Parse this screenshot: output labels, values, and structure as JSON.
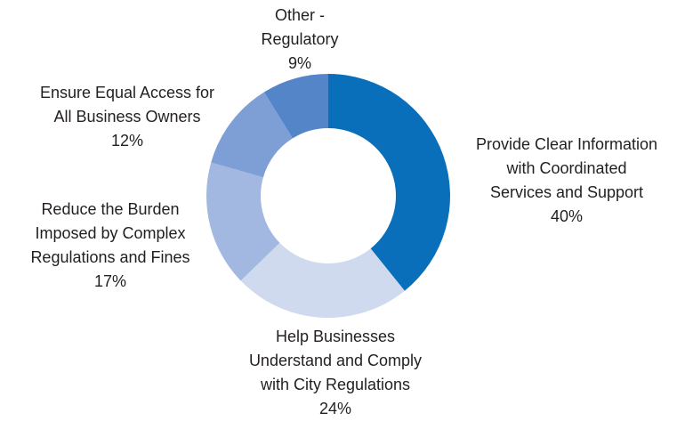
{
  "chart_data": {
    "type": "donut",
    "categories": [
      [
        "Provide Clear Information",
        "with Coordinated",
        "Services and Support"
      ],
      [
        "Help Businesses",
        "Understand and Comply",
        "with City Regulations"
      ],
      [
        "Reduce the Burden",
        "Imposed by Complex",
        "Regulations and Fines"
      ],
      [
        "Ensure Equal Access for",
        "All Business Owners"
      ],
      [
        "Other -",
        "Regulatory"
      ]
    ],
    "values": [
      40,
      24,
      17,
      12,
      9
    ],
    "value_labels": [
      "40%",
      "24%",
      "17%",
      "12%",
      "9%"
    ],
    "colors": [
      "#0a6fba",
      "#cfdaee",
      "#a3b8e0",
      "#7d9fd6",
      "#5585c9"
    ]
  }
}
